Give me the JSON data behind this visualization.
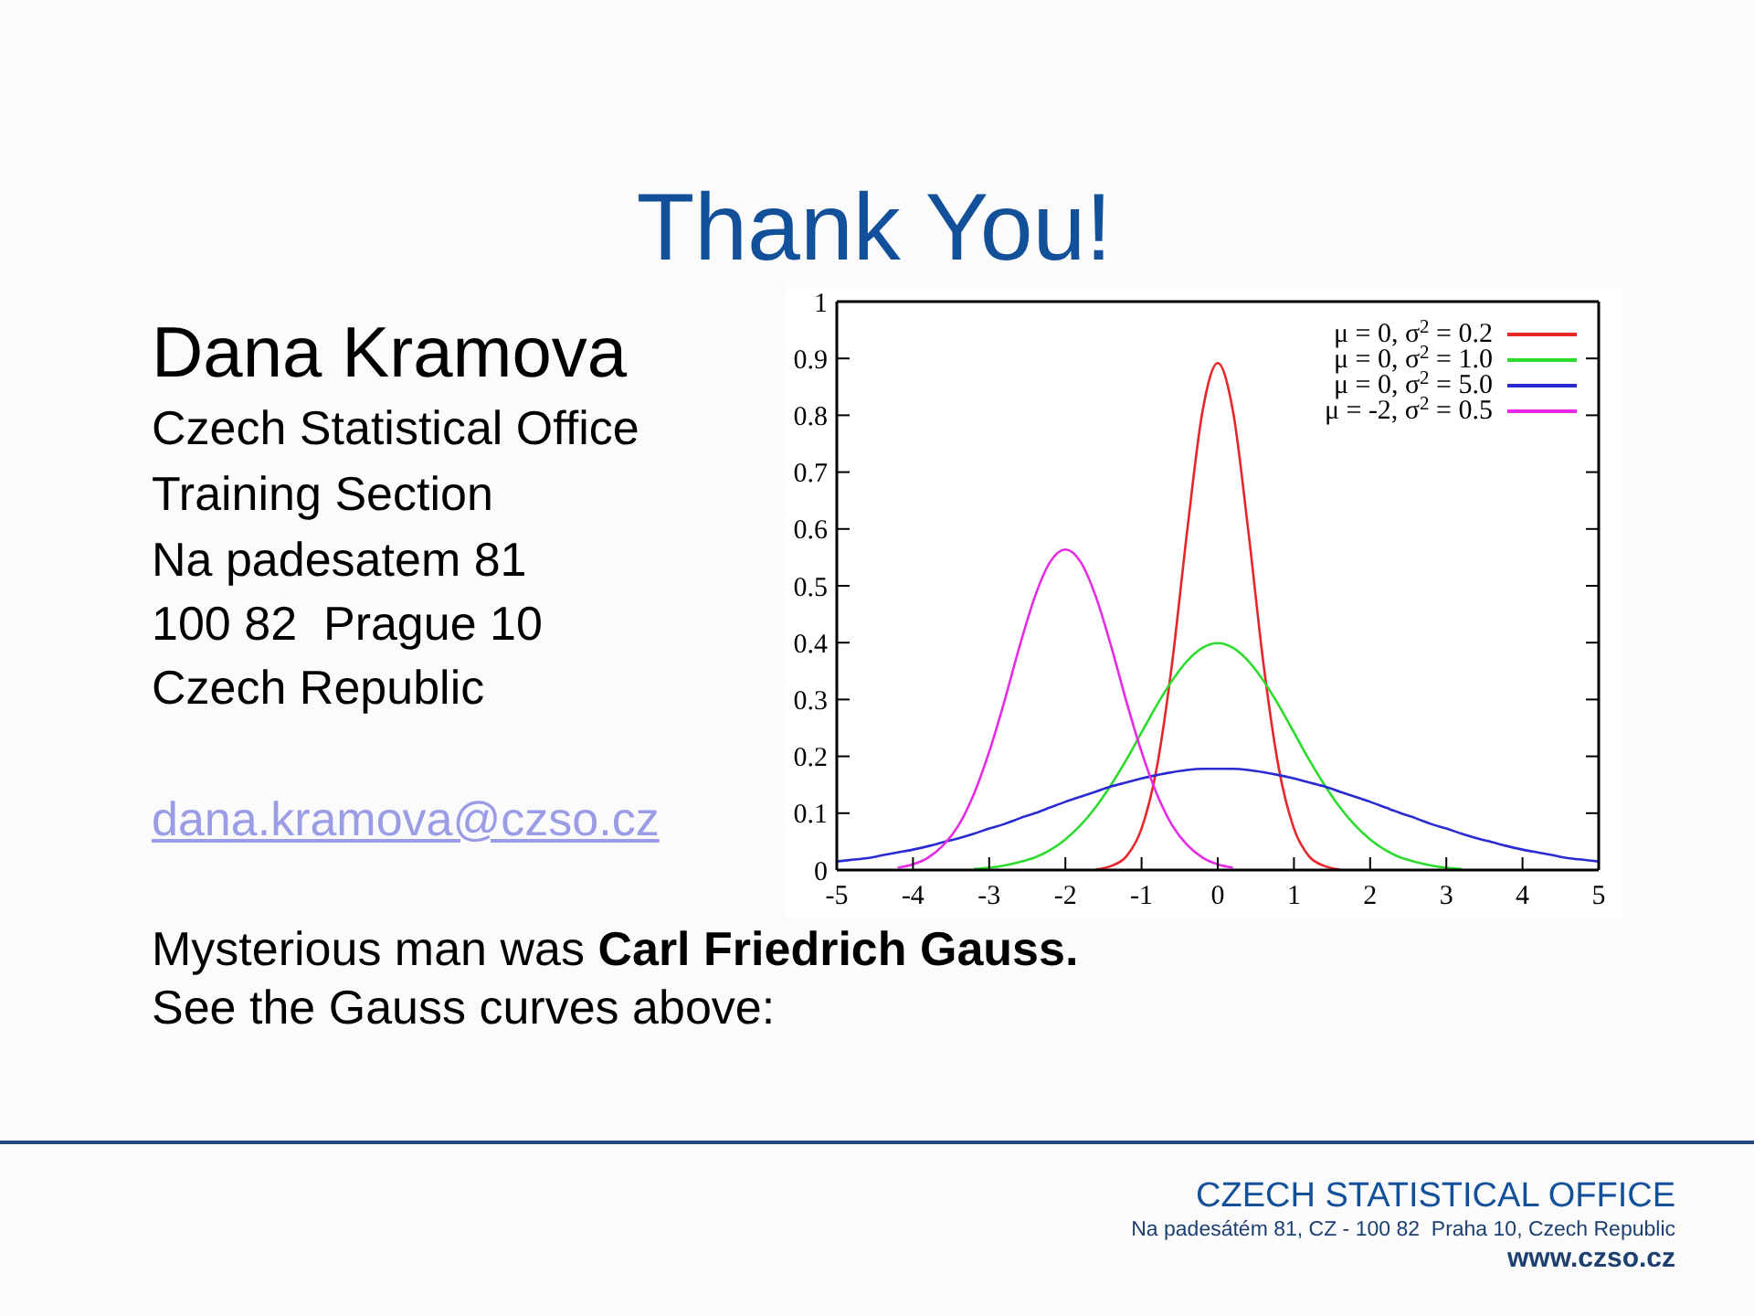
{
  "chart_data": {
    "type": "line",
    "title": "Thank You!",
    "subtitle": "Dana Kramova",
    "annotations": [
      "Czech Statistical Office",
      "Training Section",
      "Na padesatem 81",
      "100 82  Prague 10",
      "Czech Republic",
      "dana.kramova@czso.cz",
      "Mysterious man was",
      "Carl Friedrich Gauss.",
      "See the Gauss curves above:",
      "CZECH STATISTICAL OFFICE",
      "Na padesátém 81, CZ - 100 82  Praha 10, Czech Republic",
      "www.czso.cz"
    ],
    "x": [
      -5,
      -4.8,
      -4.6,
      -4.4,
      -4.2,
      -4,
      -3.8,
      -3.6,
      -3.4,
      -3.2,
      -3,
      -2.8,
      -2.6,
      -2.4,
      -2.2,
      -2,
      -1.8,
      -1.6,
      -1.4,
      -1.2,
      -1,
      -0.8,
      -0.6,
      -0.4,
      -0.2,
      0,
      0.2,
      0.4,
      0.6,
      0.8,
      1,
      1.2,
      1.4,
      1.6,
      1.8,
      2,
      2.2,
      2.4,
      2.6,
      2.8,
      3,
      3.2,
      3.4,
      3.6,
      3.8,
      4,
      4.2,
      4.4,
      4.6,
      4.8,
      5
    ],
    "series": [
      {
        "name": "μ = 0, σ$^{2}$ = 0.2",
        "color": "#e8262a",
        "values": [
          null,
          null,
          null,
          null,
          null,
          null,
          null,
          null,
          null,
          null,
          null,
          null,
          null,
          null,
          null,
          null,
          null,
          0.001,
          0.007,
          0.024,
          0.073,
          0.18,
          0.363,
          0.598,
          0.807,
          0.892,
          0.807,
          0.598,
          0.363,
          0.18,
          0.073,
          0.024,
          0.007,
          0.001,
          null,
          null,
          null,
          null,
          null,
          null,
          null,
          null,
          null,
          null,
          null,
          null,
          null,
          null,
          null,
          null,
          null
        ]
      },
      {
        "name": "μ = 0, σ$^{2}$ = 1.0",
        "color": "#2cdc2c",
        "values": [
          null,
          null,
          null,
          null,
          null,
          null,
          null,
          null,
          null,
          0.002,
          0.004,
          0.008,
          0.014,
          0.022,
          0.035,
          0.054,
          0.079,
          0.111,
          0.15,
          0.194,
          0.242,
          0.29,
          0.333,
          0.368,
          0.391,
          0.399,
          0.391,
          0.368,
          0.333,
          0.29,
          0.242,
          0.194,
          0.15,
          0.111,
          0.079,
          0.054,
          0.035,
          0.022,
          0.014,
          0.008,
          0.004,
          0.002,
          null,
          null,
          null,
          null,
          null,
          null,
          null,
          null,
          null
        ]
      },
      {
        "name": "μ = 0, σ$^{2}$ = 5.0",
        "color": "#2a2ad2",
        "values": [
          0.015,
          0.018,
          0.021,
          0.026,
          0.031,
          0.036,
          0.042,
          0.049,
          0.056,
          0.064,
          0.073,
          0.081,
          0.091,
          0.1,
          0.11,
          0.12,
          0.129,
          0.138,
          0.147,
          0.154,
          0.161,
          0.167,
          0.172,
          0.176,
          0.178,
          0.178,
          0.178,
          0.176,
          0.172,
          0.167,
          0.161,
          0.154,
          0.147,
          0.138,
          0.129,
          0.12,
          0.11,
          0.1,
          0.091,
          0.081,
          0.073,
          0.064,
          0.056,
          0.049,
          0.042,
          0.036,
          0.031,
          0.026,
          0.021,
          0.018,
          0.015
        ]
      },
      {
        "name": "μ = -2, σ$^{2}$ = 0.5",
        "color": "#e82ae8",
        "values": [
          null,
          null,
          null,
          null,
          0.004,
          0.01,
          0.022,
          0.044,
          0.079,
          0.134,
          0.208,
          0.297,
          0.394,
          0.481,
          0.542,
          0.564,
          0.542,
          0.481,
          0.394,
          0.297,
          0.208,
          0.134,
          0.079,
          0.044,
          0.022,
          0.01,
          0.004,
          null,
          null,
          null,
          null,
          null,
          null,
          null,
          null,
          null,
          null,
          null,
          null,
          null,
          null,
          null,
          null,
          null,
          null,
          null,
          null,
          null,
          null,
          null,
          null
        ]
      }
    ],
    "xlim": [
      -5,
      5
    ],
    "ylim": [
      0,
      1
    ],
    "xticks": [
      -5,
      -4,
      -3,
      -2,
      -1,
      0,
      1,
      2,
      3,
      4,
      5
    ],
    "yticks": [
      0,
      0.1,
      0.2,
      0.3,
      0.4,
      0.5,
      0.6,
      0.7,
      0.8,
      0.9,
      1
    ],
    "legend": "top right",
    "marker": "none"
  }
}
